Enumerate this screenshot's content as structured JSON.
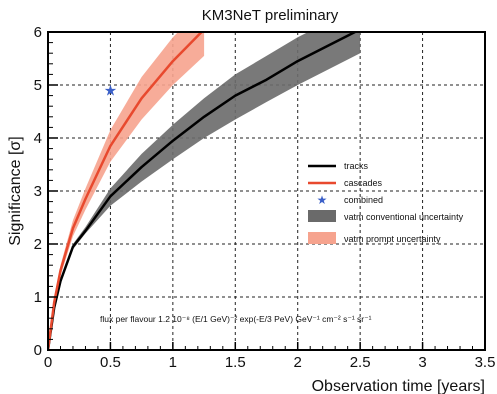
{
  "chart_data": {
    "type": "line",
    "title": "KM3NeT preliminary",
    "xlabel": "Observation time [years]",
    "ylabel": "Significance [σ]",
    "xlim": [
      0,
      3.5
    ],
    "ylim": [
      0,
      6
    ],
    "xticks": [
      "0",
      "0.5",
      "1",
      "1.5",
      "2",
      "2.5",
      "3",
      "3.5"
    ],
    "yticks": [
      "0",
      "1",
      "2",
      "3",
      "4",
      "5",
      "6"
    ],
    "grid": true,
    "legend_position": "right",
    "annotation": "flux per flavour 1.2 10⁻⁸ (E/1 GeV)⁻² exp(-E/3 PeV) GeV⁻¹ cm⁻² s⁻¹ sr⁻¹",
    "series": [
      {
        "name": "tracks",
        "color": "#000000",
        "x": [
          0,
          0.05,
          0.1,
          0.2,
          0.3,
          0.5,
          0.75,
          1.0,
          1.25,
          1.5,
          1.75,
          2.0,
          2.25,
          2.5
        ],
        "y": [
          0,
          0.8,
          1.3,
          1.95,
          2.25,
          2.9,
          3.45,
          3.95,
          4.4,
          4.8,
          5.1,
          5.45,
          5.75,
          6.05
        ],
        "band_name": "νatm conventional uncertainty",
        "band_color": "#6a6a6a",
        "band_lower": [
          0,
          0.78,
          1.25,
          1.9,
          2.2,
          2.72,
          3.18,
          3.6,
          4.0,
          4.35,
          4.68,
          5.0,
          5.3,
          5.6
        ],
        "band_upper": [
          0,
          0.82,
          1.35,
          2.0,
          2.32,
          3.05,
          3.7,
          4.25,
          4.75,
          5.2,
          5.55,
          5.9,
          6.2,
          6.5
        ]
      },
      {
        "name": "cascades",
        "color": "#e8492e",
        "x": [
          0,
          0.05,
          0.1,
          0.2,
          0.3,
          0.5,
          0.75,
          1.0,
          1.25
        ],
        "y": [
          0,
          0.9,
          1.5,
          2.3,
          2.85,
          3.85,
          4.75,
          5.45,
          6.05
        ],
        "band_name": "νatm prompt uncertainty",
        "band_color": "#f6a38e",
        "band_lower": [
          0,
          0.85,
          1.4,
          2.15,
          2.65,
          3.55,
          4.35,
          5.0,
          5.55
        ],
        "band_upper": [
          0,
          0.95,
          1.6,
          2.45,
          3.05,
          4.15,
          5.15,
          5.9,
          6.5
        ]
      }
    ],
    "points": [
      {
        "name": "combined",
        "x": 0.5,
        "y": 4.9,
        "color": "#3a5fc8",
        "marker": "star"
      }
    ],
    "legend": {
      "tracks": "tracks",
      "cascades": "cascades",
      "combined": "combined",
      "conv": "νatm conventional uncertainty",
      "prompt": "νatm prompt uncertainty"
    }
  }
}
